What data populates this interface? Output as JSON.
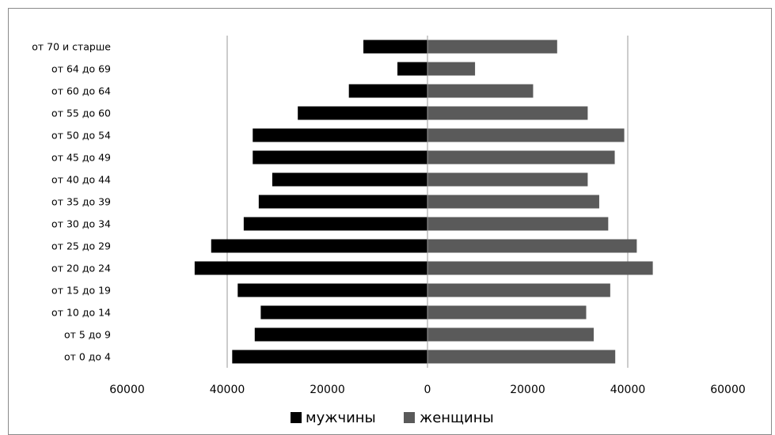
{
  "chart_data": {
    "type": "bar",
    "orientation": "horizontal",
    "layout": "population-pyramid",
    "categories": [
      "от 0 до 4",
      "от 5 до 9",
      "от 10 до 14",
      "от 15 до 19",
      "от 20 до 24",
      "от 25 до 29",
      "от 30 до 34",
      "от 35 до 39",
      "от 40 до 44",
      "от 45 до 49",
      "от 50 до 54",
      "от 55 до 60",
      "от 60 до 64",
      "от 64 до 69",
      "от 70 и старше"
    ],
    "series": [
      {
        "name": "мужчины",
        "color": "#000000",
        "side": "left",
        "values": [
          39000,
          34500,
          33300,
          37900,
          46500,
          43200,
          36700,
          33700,
          31000,
          34900,
          34900,
          25900,
          15700,
          6000,
          12800
        ]
      },
      {
        "name": "женщины",
        "color": "#5a5a5a",
        "side": "right",
        "values": [
          37500,
          33200,
          31700,
          36500,
          45000,
          41800,
          36100,
          34300,
          32000,
          37400,
          39300,
          32000,
          21100,
          9500,
          25900
        ]
      }
    ],
    "xlim": [
      -60000,
      60000
    ],
    "xticks": [
      {
        "value": -60000,
        "label": "60000"
      },
      {
        "value": -40000,
        "label": "40000"
      },
      {
        "value": -20000,
        "label": "20000"
      },
      {
        "value": 0,
        "label": "0"
      },
      {
        "value": 20000,
        "label": "20000"
      },
      {
        "value": 40000,
        "label": "40000"
      },
      {
        "value": 60000,
        "label": "60000"
      }
    ],
    "gridlines": [
      -40000,
      0,
      40000
    ],
    "legend_position": "bottom",
    "title": "",
    "xlabel": "",
    "ylabel": ""
  }
}
